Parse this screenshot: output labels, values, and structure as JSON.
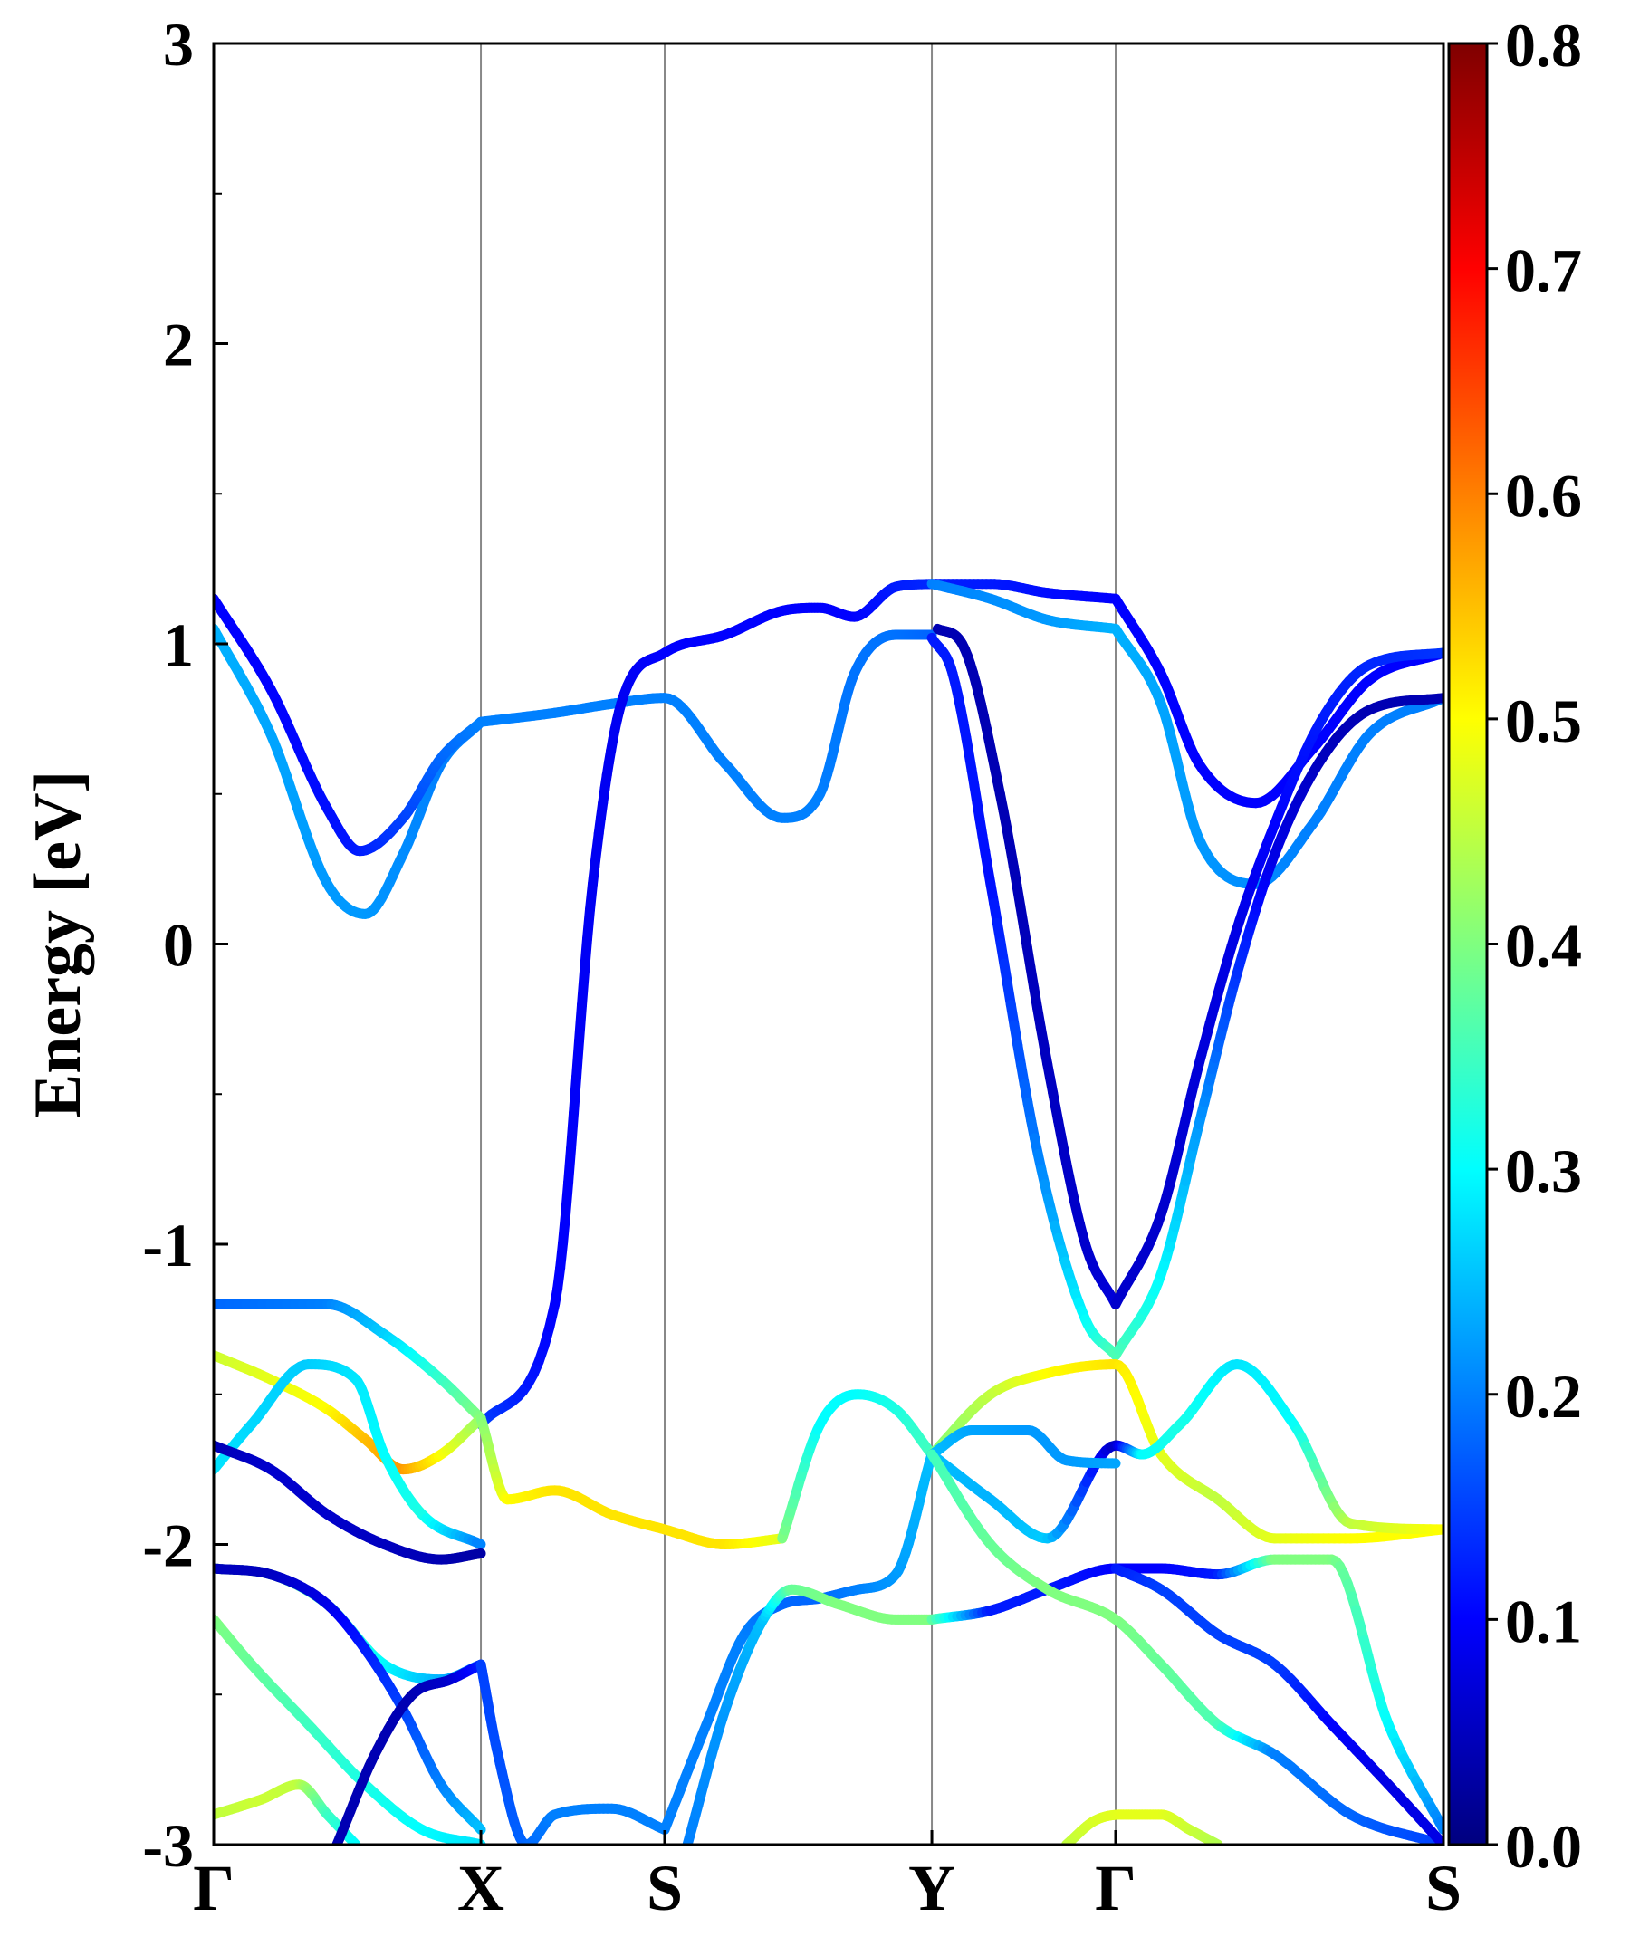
{
  "chart_data": {
    "type": "line",
    "xlabel": "",
    "ylabel": "Energy [eV]",
    "ylim": [
      -3,
      3
    ],
    "xlim": [
      0,
      6.49
    ],
    "y_ticks": [
      "3",
      "2",
      "1",
      "0",
      "-1",
      "-2",
      "-3"
    ],
    "y_tick_values": [
      3,
      2,
      1,
      0,
      -1,
      -2,
      -3
    ],
    "k_points": [
      {
        "label": "Γ",
        "x": 0
      },
      {
        "label": "X",
        "x": 1.41
      },
      {
        "label": "S",
        "x": 2.38
      },
      {
        "label": "Y",
        "x": 3.79
      },
      {
        "label": "Γ",
        "x": 4.76
      },
      {
        "label": "S",
        "x": 6.49
      }
    ],
    "colorbar": {
      "min": 0.0,
      "max": 0.8,
      "ticks": [
        "0.8",
        "0.7",
        "0.6",
        "0.5",
        "0.4",
        "0.3",
        "0.2",
        "0.1",
        "0.0"
      ],
      "tick_values": [
        0.8,
        0.7,
        0.6,
        0.5,
        0.4,
        0.3,
        0.2,
        0.1,
        0.0
      ],
      "colormap": "jet"
    },
    "grid": false,
    "legend": "none",
    "bands": [
      {
        "x": [
          0,
          0.3,
          0.6,
          0.8,
          1.0,
          1.2,
          1.41
        ],
        "y": [
          1.05,
          0.7,
          0.2,
          0.1,
          0.3,
          0.6,
          0.74
        ],
        "weight": [
          0.24,
          0.23,
          0.22,
          0.22,
          0.21,
          0.2,
          0.2
        ]
      },
      {
        "x": [
          0,
          0.3,
          0.6,
          0.77,
          1.0,
          1.2,
          1.41
        ],
        "y": [
          1.15,
          0.85,
          0.45,
          0.31,
          0.42,
          0.62,
          0.74
        ],
        "weight": [
          0.1,
          0.1,
          0.11,
          0.12,
          0.15,
          0.18,
          0.2
        ]
      },
      {
        "x": [
          1.41,
          1.8,
          2.1,
          2.38,
          2.7,
          3.0,
          3.2,
          3.38,
          3.6,
          3.79
        ],
        "y": [
          0.74,
          0.77,
          0.8,
          0.82,
          0.6,
          0.42,
          0.5,
          0.9,
          1.03,
          1.03
        ],
        "weight": [
          0.2,
          0.2,
          0.2,
          0.2,
          0.2,
          0.2,
          0.2,
          0.19,
          0.19,
          0.18
        ]
      },
      {
        "x": [
          1.41,
          1.8,
          2.0,
          2.15,
          2.38,
          2.7,
          3.0,
          3.2,
          3.38,
          3.6,
          3.79
        ],
        "y": [
          -1.6,
          -1.2,
          0.2,
          0.8,
          0.97,
          1.03,
          1.11,
          1.12,
          1.09,
          1.19,
          1.2
        ],
        "weight": [
          0.15,
          0.1,
          0.09,
          0.09,
          0.1,
          0.1,
          0.1,
          0.1,
          0.1,
          0.12,
          0.13
        ]
      },
      {
        "x": [
          3.79,
          4.1,
          4.4,
          4.76
        ],
        "y": [
          1.2,
          1.2,
          1.17,
          1.15
        ],
        "weight": [
          0.12,
          0.12,
          0.11,
          0.1
        ]
      },
      {
        "x": [
          3.79,
          4.1,
          4.4,
          4.76
        ],
        "y": [
          1.2,
          1.15,
          1.08,
          1.05
        ],
        "weight": [
          0.2,
          0.21,
          0.22,
          0.24
        ]
      },
      {
        "x": [
          3.79,
          3.9,
          4.1,
          4.35,
          4.6,
          4.76
        ],
        "y": [
          1.02,
          0.9,
          0.2,
          -0.7,
          -1.25,
          -1.37
        ],
        "weight": [
          0.12,
          0.12,
          0.11,
          0.2,
          0.3,
          0.36
        ]
      },
      {
        "x": [
          3.82,
          3.95,
          4.15,
          4.4,
          4.6,
          4.76
        ],
        "y": [
          1.05,
          1.0,
          0.5,
          -0.4,
          -1.0,
          -1.2
        ],
        "weight": [
          0.04,
          0.04,
          0.04,
          0.05,
          0.06,
          0.07
        ]
      },
      {
        "x": [
          4.76,
          5.0,
          5.2,
          5.5,
          5.8,
          6.1,
          6.49
        ],
        "y": [
          1.05,
          0.8,
          0.35,
          0.2,
          0.4,
          0.7,
          0.82
        ],
        "weight": [
          0.24,
          0.23,
          0.22,
          0.21,
          0.2,
          0.2,
          0.2
        ]
      },
      {
        "x": [
          4.76,
          5.0,
          5.2,
          5.5,
          5.8,
          6.1,
          6.49
        ],
        "y": [
          1.15,
          0.9,
          0.6,
          0.47,
          0.65,
          0.88,
          0.97
        ],
        "weight": [
          0.1,
          0.1,
          0.1,
          0.1,
          0.1,
          0.1,
          0.1
        ]
      },
      {
        "x": [
          4.76,
          5.0,
          5.2,
          5.4,
          5.6,
          5.85,
          6.1,
          6.49
        ],
        "y": [
          -1.2,
          -0.9,
          -0.4,
          0.05,
          0.4,
          0.75,
          0.93,
          0.97
        ],
        "weight": [
          0.06,
          0.06,
          0.07,
          0.08,
          0.1,
          0.12,
          0.13,
          0.14
        ]
      },
      {
        "x": [
          4.76,
          5.0,
          5.2,
          5.4,
          5.6,
          5.85,
          6.1,
          6.49
        ],
        "y": [
          -1.37,
          -1.1,
          -0.6,
          -0.1,
          0.3,
          0.62,
          0.78,
          0.82
        ],
        "weight": [
          0.36,
          0.3,
          0.22,
          0.14,
          0.08,
          0.05,
          0.04,
          0.04
        ]
      },
      {
        "x": [
          0,
          0.6,
          0.9,
          1.2,
          1.41
        ],
        "y": [
          -1.2,
          -1.2,
          -1.3,
          -1.45,
          -1.58
        ],
        "weight": [
          0.18,
          0.2,
          0.26,
          0.34,
          0.4
        ]
      },
      {
        "x": [
          0,
          0.3,
          0.6,
          0.8,
          1.0,
          1.2,
          1.41
        ],
        "y": [
          -1.37,
          -1.45,
          -1.55,
          -1.65,
          -1.75,
          -1.7,
          -1.58
        ],
        "weight": [
          0.46,
          0.48,
          0.5,
          0.55,
          0.58,
          0.5,
          0.42
        ]
      },
      {
        "x": [
          1.41,
          1.55,
          1.8,
          2.1,
          2.38,
          2.7,
          3.0
        ],
        "y": [
          -1.58,
          -1.85,
          -1.82,
          -1.9,
          -1.95,
          -2.0,
          -1.98
        ],
        "weight": [
          0.4,
          0.5,
          0.52,
          0.52,
          0.52,
          0.52,
          0.48
        ]
      },
      {
        "x": [
          3.0,
          3.2,
          3.4,
          3.6,
          3.79
        ],
        "y": [
          -1.98,
          -1.6,
          -1.5,
          -1.55,
          -1.7
        ],
        "weight": [
          0.4,
          0.3,
          0.3,
          0.32,
          0.35
        ]
      },
      {
        "x": [
          3.79,
          4.1,
          4.4,
          4.76,
          5.0,
          5.3,
          5.6,
          6.0,
          6.49
        ],
        "y": [
          -1.7,
          -1.5,
          -1.43,
          -1.4,
          -1.7,
          -1.85,
          -1.98,
          -1.98,
          -1.95
        ],
        "weight": [
          0.4,
          0.45,
          0.5,
          0.52,
          0.48,
          0.45,
          0.48,
          0.5,
          0.5
        ]
      },
      {
        "x": [
          0,
          0.2,
          0.5,
          0.75,
          0.9,
          1.1,
          1.41
        ],
        "y": [
          -1.75,
          -1.6,
          -1.4,
          -1.45,
          -1.7,
          -1.9,
          -2.0
        ],
        "weight": [
          0.28,
          0.27,
          0.26,
          0.28,
          0.3,
          0.32,
          0.2
        ]
      },
      {
        "x": [
          0,
          0.3,
          0.6,
          0.9,
          1.2,
          1.41
        ],
        "y": [
          -1.67,
          -1.75,
          -1.9,
          -2.0,
          -2.05,
          -2.03
        ],
        "weight": [
          0.04,
          0.06,
          0.06,
          0.05,
          0.04,
          0.03
        ]
      },
      {
        "x": [
          3.79,
          4.1,
          4.4,
          4.76,
          4.9,
          5.1,
          5.4,
          5.7,
          6.0,
          6.49
        ],
        "y": [
          -1.7,
          -1.85,
          -1.98,
          -1.67,
          -1.7,
          -1.6,
          -1.4,
          -1.6,
          -1.93,
          -1.95
        ],
        "weight": [
          0.25,
          0.24,
          0.26,
          0.05,
          0.3,
          0.32,
          0.28,
          0.3,
          0.45,
          0.5
        ]
      },
      {
        "x": [
          3.79,
          4.0,
          4.3,
          4.5,
          4.76
        ],
        "y": [
          -1.7,
          -1.62,
          -1.62,
          -1.72,
          -1.73
        ],
        "weight": [
          0.25,
          0.23,
          0.22,
          0.22,
          0.23
        ]
      },
      {
        "x": [
          0,
          0.3,
          0.6,
          0.9,
          1.2,
          1.41
        ],
        "y": [
          -2.08,
          -2.1,
          -2.2,
          -2.4,
          -2.45,
          -2.4
        ],
        "weight": [
          0.4,
          0.38,
          0.35,
          0.3,
          0.24,
          0.2
        ]
      },
      {
        "x": [
          0,
          0.3,
          0.6,
          0.8,
          1.0,
          1.2,
          1.41
        ],
        "y": [
          -2.08,
          -2.1,
          -2.2,
          -2.35,
          -2.55,
          -2.8,
          -2.95
        ],
        "weight": [
          0.05,
          0.05,
          0.08,
          0.12,
          0.15,
          0.2,
          0.25
        ]
      },
      {
        "x": [
          0,
          0.2,
          0.5,
          0.8,
          1.1,
          1.41
        ],
        "y": [
          -2.25,
          -2.4,
          -2.6,
          -2.8,
          -2.95,
          -3.0
        ],
        "weight": [
          0.4,
          0.38,
          0.35,
          0.32,
          0.3,
          0.28
        ]
      },
      {
        "x": [
          0,
          0.25,
          0.45,
          0.6,
          0.75
        ],
        "y": [
          -2.9,
          -2.85,
          -2.8,
          -2.9,
          -3.0
        ],
        "weight": [
          0.45,
          0.46,
          0.45,
          0.35,
          0.3
        ]
      },
      {
        "x": [
          0.65,
          0.85,
          1.05,
          1.25,
          1.41
        ],
        "y": [
          -3.0,
          -2.7,
          -2.5,
          -2.45,
          -2.4
        ],
        "weight": [
          0.04,
          0.04,
          0.04,
          0.06,
          0.12
        ]
      },
      {
        "x": [
          1.41,
          1.5,
          1.65,
          1.8,
          2.1,
          2.38
        ],
        "y": [
          -2.4,
          -2.7,
          -3.0,
          -2.9,
          -2.88,
          -2.95
        ],
        "weight": [
          0.15,
          0.16,
          0.18,
          0.2,
          0.2,
          0.2
        ]
      },
      {
        "x": [
          2.38,
          2.6,
          2.8,
          3.0,
          3.2,
          3.4,
          3.6,
          3.79
        ],
        "y": [
          -2.95,
          -2.6,
          -2.3,
          -2.2,
          -2.18,
          -2.15,
          -2.1,
          -1.7
        ],
        "weight": [
          0.2,
          0.2,
          0.2,
          0.18,
          0.18,
          0.2,
          0.22,
          0.25
        ]
      },
      {
        "x": [
          2.5,
          2.7,
          2.9,
          3.05,
          3.3,
          3.6,
          3.79
        ],
        "y": [
          -3.0,
          -2.55,
          -2.25,
          -2.15,
          -2.2,
          -2.25,
          -2.25
        ],
        "weight": [
          0.2,
          0.22,
          0.25,
          0.38,
          0.4,
          0.4,
          0.4
        ]
      },
      {
        "x": [
          3.79,
          4.1,
          4.4,
          4.76,
          5.0,
          5.3,
          5.6,
          5.9,
          6.2,
          6.49
        ],
        "y": [
          -2.25,
          -2.22,
          -2.15,
          -2.08,
          -2.08,
          -2.1,
          -2.05,
          -2.05,
          -2.6,
          -2.95
        ],
        "weight": [
          0.38,
          0.12,
          0.12,
          0.1,
          0.1,
          0.12,
          0.4,
          0.4,
          0.3,
          0.2
        ]
      },
      {
        "x": [
          3.79,
          4.1,
          4.4,
          4.76,
          5.0,
          5.3,
          5.6,
          6.0,
          6.49
        ],
        "y": [
          -1.7,
          -2.0,
          -2.15,
          -2.25,
          -2.4,
          -2.6,
          -2.7,
          -2.9,
          -3.0
        ],
        "weight": [
          0.35,
          0.38,
          0.4,
          0.4,
          0.38,
          0.36,
          0.2,
          0.18,
          0.15
        ]
      },
      {
        "x": [
          4.76,
          5.0,
          5.3,
          5.6,
          5.9,
          6.2,
          6.49
        ],
        "y": [
          -2.08,
          -2.15,
          -2.3,
          -2.4,
          -2.6,
          -2.8,
          -3.0
        ],
        "weight": [
          0.12,
          0.15,
          0.15,
          0.15,
          0.1,
          0.08,
          0.08
        ]
      },
      {
        "x": [
          4.5,
          4.65,
          4.8,
          5.0,
          5.15,
          5.3
        ],
        "y": [
          -3.0,
          -2.92,
          -2.9,
          -2.9,
          -2.95,
          -3.0
        ],
        "weight": [
          0.45,
          0.47,
          0.48,
          0.48,
          0.46,
          0.44
        ]
      }
    ]
  }
}
